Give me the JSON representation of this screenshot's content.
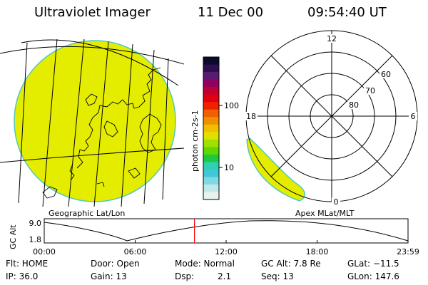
{
  "header": {
    "instrument": "Ultraviolet Imager",
    "date": "11 Dec 00",
    "time": "09:54:40 UT"
  },
  "left_panel": {
    "label": "Geographic Lat/Lon"
  },
  "right_panel": {
    "label": "Apex MLat/MLT",
    "mlt_labels": [
      "12",
      "18",
      "6",
      "0"
    ],
    "mlat_labels": [
      "60",
      "70",
      "80"
    ]
  },
  "colorbar": {
    "unit_label": "photon cm-2s-1",
    "ticks": [
      "100",
      "10"
    ],
    "colors_top_to_bottom": [
      "#0a0a2a",
      "#2a1050",
      "#5a1a70",
      "#900060",
      "#c00030",
      "#e00010",
      "#f02000",
      "#f06000",
      "#f09000",
      "#f0c000",
      "#e0e000",
      "#a0e000",
      "#60d800",
      "#20c840",
      "#30d0b0",
      "#40c8d8",
      "#80d8e0",
      "#c0e8ea",
      "#e8f0f0"
    ]
  },
  "altitude_strip": {
    "ylabel": "GC Alt",
    "y_ticks": [
      "9.0",
      "1.8"
    ],
    "x_ticks": [
      "00:00",
      "06:00",
      "12:00",
      "18:00",
      "23:59"
    ],
    "current_time_hours": 9.91,
    "marker_color": "#ff0000"
  },
  "status": {
    "flt": "Flt: HOME",
    "door": "Door: Open",
    "mode": "Mode: Normal",
    "gc_alt": "GC Alt: 7.8 Re",
    "glat": "GLat: −11.5",
    "ip": "IP: 36.0",
    "gain": "Gain: 13",
    "dsp_label": "Dsp:",
    "dsp_value": "2.1",
    "seq": "Seq: 13",
    "glon": "GLon: 147.6"
  },
  "colors": {
    "emission": "#e4ed00",
    "emission_edge": "#50c8c0",
    "outline": "#000000"
  }
}
